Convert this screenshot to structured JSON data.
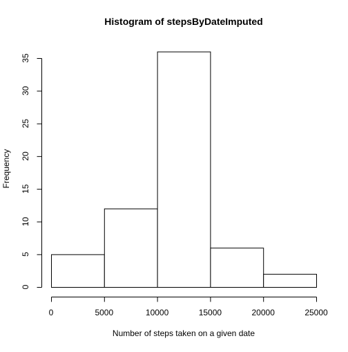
{
  "chart_data": {
    "type": "bar",
    "subtype": "histogram",
    "title": "Histogram of stepsByDateImputed",
    "xlabel": "Number of steps taken on a given date",
    "ylabel": "Frequency",
    "bins": [
      {
        "start": 0,
        "end": 5000,
        "count": 5
      },
      {
        "start": 5000,
        "end": 10000,
        "count": 12
      },
      {
        "start": 10000,
        "end": 15000,
        "count": 36
      },
      {
        "start": 15000,
        "end": 20000,
        "count": 6
      },
      {
        "start": 20000,
        "end": 25000,
        "count": 2
      }
    ],
    "xlim": [
      0,
      25000
    ],
    "ylim": [
      0,
      36
    ],
    "x_ticks": [
      0,
      5000,
      10000,
      15000,
      20000,
      25000
    ],
    "y_ticks": [
      0,
      5,
      10,
      15,
      20,
      25,
      30,
      35
    ],
    "grid": false,
    "bar_fill": "#ffffff",
    "bar_stroke": "#000000"
  }
}
